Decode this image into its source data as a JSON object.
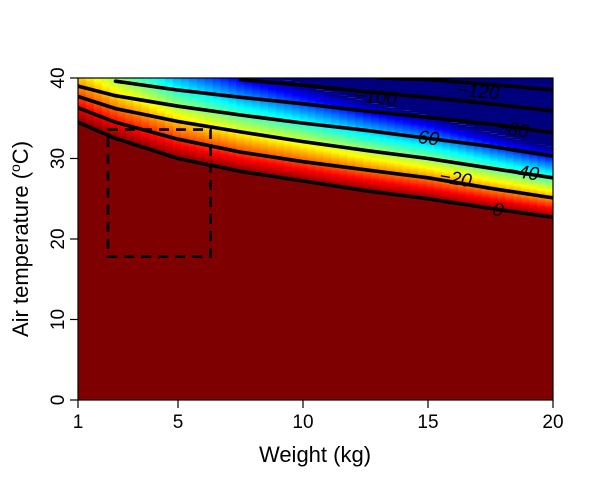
{
  "chart_data": {
    "type": "heatmap",
    "title": "",
    "xlabel": "Weight (kg)",
    "ylabel_main": "Air temperature (",
    "ylabel_sup": "o",
    "ylabel_end": "C)",
    "xlim": [
      1,
      20
    ],
    "ylim": [
      0,
      40
    ],
    "x_ticks": [
      {
        "value": 1,
        "label": "1"
      },
      {
        "value": 5,
        "label": "5"
      },
      {
        "value": 10,
        "label": "10"
      },
      {
        "value": 15,
        "label": "15"
      },
      {
        "value": 20,
        "label": "20"
      }
    ],
    "y_ticks": [
      {
        "value": 0,
        "label": "0"
      },
      {
        "value": 10,
        "label": "10"
      },
      {
        "value": 20,
        "label": "20"
      },
      {
        "value": 30,
        "label": "30"
      },
      {
        "value": 40,
        "label": "40"
      }
    ],
    "colorscale": [
      "#7f0000",
      "#ff0000",
      "#ff7f00",
      "#ffff00",
      "#7fff7f",
      "#00ffff",
      "#007fff",
      "#0000ff",
      "#00007f"
    ],
    "contours": [
      {
        "level": 0,
        "label": "0",
        "points": [
          [
            1,
            34.5
          ],
          [
            2.5,
            32.5
          ],
          [
            5,
            30.0
          ],
          [
            7.5,
            28.4
          ],
          [
            10,
            27.2
          ],
          [
            12.5,
            26.0
          ],
          [
            15,
            25.0
          ],
          [
            17.5,
            23.8
          ],
          [
            20,
            22.7
          ]
        ],
        "label_x": 17.8,
        "label_y": 23.6
      },
      {
        "level": -20,
        "label": "−20",
        "points": [
          [
            1,
            36.3
          ],
          [
            2.5,
            34.5
          ],
          [
            5,
            32.4
          ],
          [
            7.5,
            30.8
          ],
          [
            10,
            29.6
          ],
          [
            12.5,
            28.6
          ],
          [
            15,
            27.6
          ],
          [
            17.5,
            26.3
          ],
          [
            20,
            25.1
          ]
        ],
        "label_x": 16.1,
        "label_y": 27.5
      },
      {
        "level": -40,
        "label": "−40",
        "points": [
          [
            1,
            37.7
          ],
          [
            2.5,
            36.2
          ],
          [
            5,
            34.6
          ],
          [
            7.5,
            33.3
          ],
          [
            10,
            32.1
          ],
          [
            12.5,
            31.0
          ],
          [
            15,
            30.0
          ],
          [
            17.5,
            28.8
          ],
          [
            20,
            27.6
          ]
        ],
        "label_x": 18.8,
        "label_y": 28.3
      },
      {
        "level": -60,
        "label": "−60",
        "points": [
          [
            1,
            39.0
          ],
          [
            2.5,
            37.8
          ],
          [
            5,
            36.5
          ],
          [
            7.5,
            35.4
          ],
          [
            10,
            34.4
          ],
          [
            12.5,
            33.5
          ],
          [
            15,
            32.5
          ],
          [
            17.5,
            31.5
          ],
          [
            20,
            30.3
          ]
        ],
        "label_x": 14.8,
        "label_y": 32.6
      },
      {
        "level": -80,
        "label": "−80",
        "points": [
          [
            2.5,
            39.6
          ],
          [
            5,
            38.5
          ],
          [
            7.5,
            37.6
          ],
          [
            10,
            36.8
          ],
          [
            12.5,
            35.9
          ],
          [
            15,
            35.1
          ],
          [
            17.5,
            34.3
          ],
          [
            20,
            33.2
          ]
        ],
        "label_x": 18.4,
        "label_y": 33.6
      },
      {
        "level": -100,
        "label": "−100",
        "points": [
          [
            7.5,
            39.8
          ],
          [
            10,
            39.1
          ],
          [
            12.5,
            38.3
          ],
          [
            15,
            37.6
          ],
          [
            17.5,
            36.8
          ],
          [
            20,
            35.9
          ]
        ],
        "label_x": 12.9,
        "label_y": 37.6
      },
      {
        "level": -120,
        "label": "−120",
        "points": [
          [
            13,
            40.0
          ],
          [
            15,
            39.8
          ],
          [
            17.5,
            39.2
          ],
          [
            20,
            38.5
          ]
        ],
        "label_x": 17.0,
        "label_y": 38.3
      }
    ],
    "zero_edge_temp": [
      [
        1,
        34.5
      ],
      [
        2.5,
        32.5
      ],
      [
        5,
        30.0
      ],
      [
        7.5,
        28.4
      ],
      [
        10,
        27.2
      ],
      [
        12.5,
        26.0
      ],
      [
        15,
        25.0
      ],
      [
        17.5,
        23.8
      ],
      [
        20,
        22.7
      ]
    ],
    "dashed_box": {
      "x_min": 2.2,
      "x_max": 6.3,
      "y_min": 17.8,
      "y_max": 33.6
    }
  }
}
